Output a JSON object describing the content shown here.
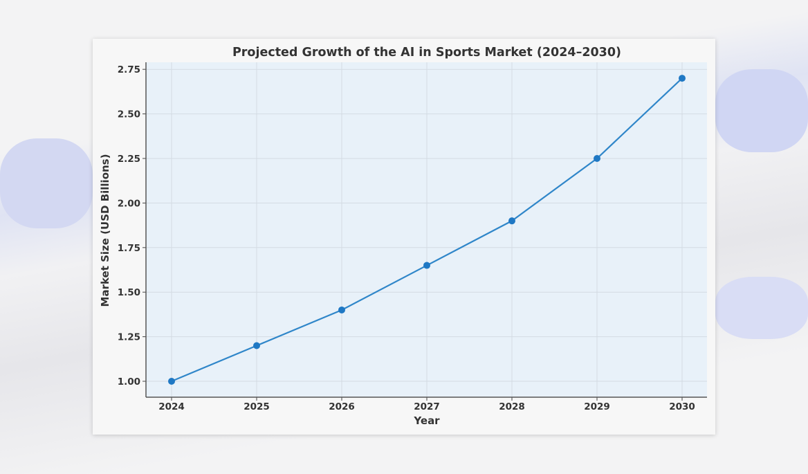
{
  "chart_data": {
    "type": "line",
    "title": "Projected Growth of the AI in Sports Market (2024–2030)",
    "xlabel": "Year",
    "ylabel": "Market Size (USD Billions)",
    "x": [
      2024,
      2025,
      2026,
      2027,
      2028,
      2029,
      2030
    ],
    "values": [
      1.0,
      1.2,
      1.4,
      1.65,
      1.9,
      2.25,
      2.7
    ],
    "x_ticks": [
      "2024",
      "2025",
      "2026",
      "2027",
      "2028",
      "2029",
      "2030"
    ],
    "y_ticks": [
      "1.00",
      "1.25",
      "1.50",
      "1.75",
      "2.00",
      "2.25",
      "2.50",
      "2.75"
    ],
    "ylim": [
      0.93,
      2.78
    ],
    "grid": true,
    "markers": "circle",
    "colors": {
      "line": "#2f86c9",
      "marker": "#1f78c4",
      "plot_bg": "#e8f1f9"
    }
  }
}
